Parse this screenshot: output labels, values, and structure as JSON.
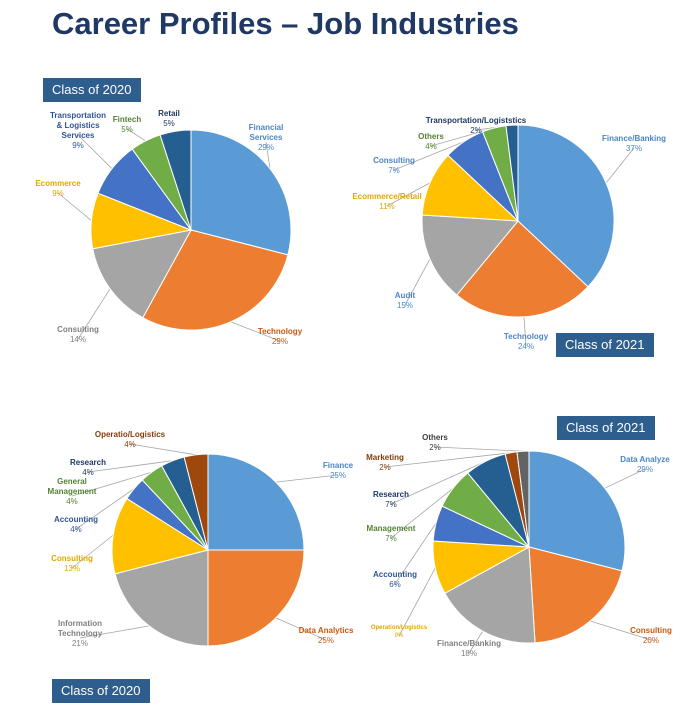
{
  "title": "Career Profiles – Job Industries",
  "badges": [
    {
      "label": "Class of 2020"
    },
    {
      "label": "Class of 2021"
    },
    {
      "label": "Class of 2021"
    },
    {
      "label": "Class of 2020"
    }
  ],
  "chart_data": [
    {
      "type": "pie",
      "group": "Class of 2020",
      "slices": [
        {
          "label": "Financial Services",
          "value": 29,
          "pct": "29%",
          "color": "#5b9bd5",
          "label_color": "#4a86c5"
        },
        {
          "label": "Technology",
          "value": 29,
          "pct": "29%",
          "color": "#ed7d31",
          "label_color": "#c55a11"
        },
        {
          "label": "Consulting",
          "value": 14,
          "pct": "14%",
          "color": "#a5a5a5",
          "label_color": "#7f7f7f"
        },
        {
          "label": "Ecommerce",
          "value": 9,
          "pct": "9%",
          "color": "#ffc000",
          "label_color": "#e0a800"
        },
        {
          "label": "Transportation & Logistics Services",
          "value": 9,
          "pct": "9%",
          "color": "#4472c4",
          "label_color": "#2f5597"
        },
        {
          "label": "Fintech",
          "value": 5,
          "pct": "5%",
          "color": "#70ad47",
          "label_color": "#548235"
        },
        {
          "label": "Retail",
          "value": 5,
          "pct": "5%",
          "color": "#255e91",
          "label_color": "#1f3864"
        }
      ]
    },
    {
      "type": "pie",
      "group": "Class of 2021",
      "slices": [
        {
          "label": "Finance/Banking",
          "value": 37,
          "pct": "37%",
          "color": "#5b9bd5",
          "label_color": "#4a86c5"
        },
        {
          "label": "Technology",
          "value": 24,
          "pct": "24%",
          "color": "#ed7d31",
          "label_color": "#4a86c5"
        },
        {
          "label": "Audit",
          "value": 15,
          "pct": "15%",
          "color": "#a5a5a5",
          "label_color": "#4a86c5"
        },
        {
          "label": "Ecommerce/Retail",
          "value": 11,
          "pct": "11%",
          "color": "#ffc000",
          "label_color": "#e0a800"
        },
        {
          "label": "Consulting",
          "value": 7,
          "pct": "7%",
          "color": "#4472c4",
          "label_color": "#4a86c5"
        },
        {
          "label": "Others",
          "value": 4,
          "pct": "4%",
          "color": "#70ad47",
          "label_color": "#548235"
        },
        {
          "label": "Transportation/Logiststics",
          "value": 2,
          "pct": "2%",
          "color": "#255e91",
          "label_color": "#1f3864"
        }
      ]
    },
    {
      "type": "pie",
      "group": "Class of 2020",
      "slices": [
        {
          "label": "Finance",
          "value": 25,
          "pct": "25%",
          "color": "#5b9bd5",
          "label_color": "#4a86c5"
        },
        {
          "label": "Data Analytics",
          "value": 25,
          "pct": "25%",
          "color": "#ed7d31",
          "label_color": "#c55a11"
        },
        {
          "label": "Information Technology",
          "value": 21,
          "pct": "21%",
          "color": "#a5a5a5",
          "label_color": "#7f7f7f"
        },
        {
          "label": "Consulting",
          "value": 13,
          "pct": "13%",
          "color": "#ffc000",
          "label_color": "#e0a800"
        },
        {
          "label": "Accounting",
          "value": 4,
          "pct": "4%",
          "color": "#4472c4",
          "label_color": "#2f5597"
        },
        {
          "label": "General Management",
          "value": 4,
          "pct": "4%",
          "color": "#70ad47",
          "label_color": "#548235"
        },
        {
          "label": "Research",
          "value": 4,
          "pct": "4%",
          "color": "#255e91",
          "label_color": "#1f3864"
        },
        {
          "label": "Operatio/Logistics",
          "value": 4,
          "pct": "4%",
          "color": "#9e480e",
          "label_color": "#843c0c"
        }
      ]
    },
    {
      "type": "pie",
      "group": "Class of 2021",
      "slices": [
        {
          "label": "Data Analyze",
          "value": 29,
          "pct": "29%",
          "color": "#5b9bd5",
          "label_color": "#4a86c5"
        },
        {
          "label": "Consulting",
          "value": 20,
          "pct": "20%",
          "color": "#ed7d31",
          "label_color": "#c55a11"
        },
        {
          "label": "Finance/Banking",
          "value": 18,
          "pct": "18%",
          "color": "#a5a5a5",
          "label_color": "#7f7f7f"
        },
        {
          "label": "Operation/Logistics",
          "value": 9,
          "pct": "9%",
          "color": "#ffc000",
          "label_color": "#e0a800"
        },
        {
          "label": "Accounting",
          "value": 6,
          "pct": "6%",
          "color": "#4472c4",
          "label_color": "#2f5597"
        },
        {
          "label": "Management",
          "value": 7,
          "pct": "7%",
          "color": "#70ad47",
          "label_color": "#548235"
        },
        {
          "label": "Research",
          "value": 7,
          "pct": "7%",
          "color": "#255e91",
          "label_color": "#1f3864"
        },
        {
          "label": "Marketing",
          "value": 2,
          "pct": "2%",
          "color": "#9e480e",
          "label_color": "#843c0c"
        },
        {
          "label": "Others",
          "value": 2,
          "pct": "2%",
          "color": "#636363",
          "label_color": "#404040"
        }
      ]
    }
  ]
}
